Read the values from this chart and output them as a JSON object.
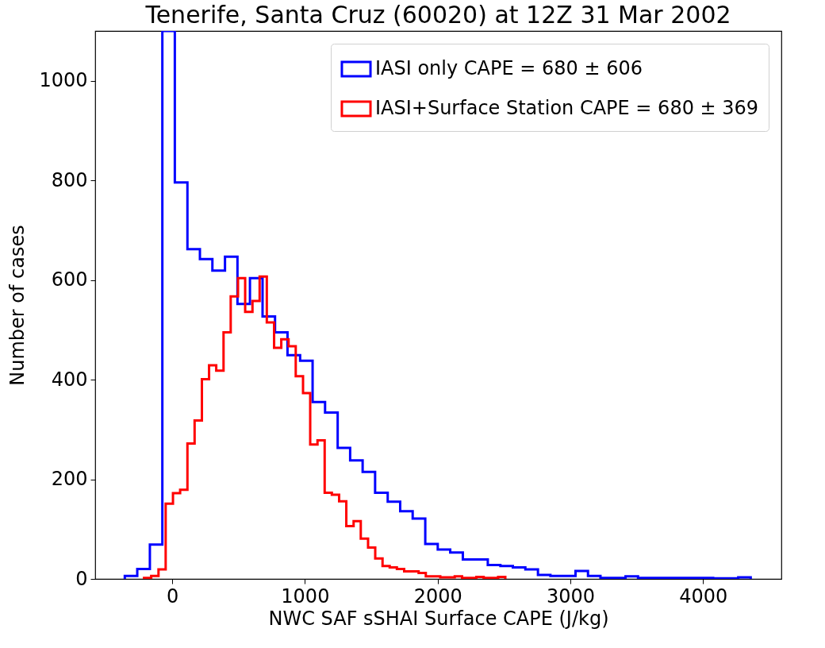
{
  "chart_data": {
    "type": "histogram",
    "title": "Tenerife, Santa Cruz (60020) at 12Z 31 Mar 2002",
    "xlabel": "NWC SAF sSHAI Surface CAPE (J/kg)",
    "ylabel": "Number of cases",
    "xlim": [
      -580,
      4590
    ],
    "ylim": [
      0,
      1100
    ],
    "xticks": [
      0,
      1000,
      2000,
      3000,
      4000
    ],
    "yticks": [
      0,
      200,
      400,
      600,
      800,
      1000
    ],
    "legend": "top right",
    "bins": [
      -357,
      -263,
      -168,
      -74,
      20,
      115,
      209,
      303,
      398,
      492,
      586,
      681,
      775,
      869,
      964,
      1058,
      1152,
      1247,
      1341,
      1435,
      1529,
      1624,
      1718,
      1812,
      1907,
      2001,
      2095,
      2190,
      2284,
      2378,
      2473,
      2567,
      2661,
      2756,
      2850,
      2944,
      3039,
      3133,
      3227,
      3322,
      3416,
      3510,
      3604,
      3699,
      3793,
      3887,
      3982,
      4076,
      4170,
      4265,
      4359
    ],
    "series": [
      {
        "name": "IASI only CAPE = 680 ± 606",
        "color": "#0000ff",
        "values": [
          6,
          20,
          69,
          1100,
          796,
          662,
          642,
          619,
          647,
          552,
          604,
          527,
          495,
          449,
          438,
          355,
          334,
          263,
          238,
          215,
          173,
          155,
          136,
          121,
          70,
          59,
          53,
          39,
          39,
          28,
          26,
          23,
          19,
          8,
          6,
          6,
          16,
          6,
          2,
          2,
          5,
          2,
          2,
          2,
          2,
          2,
          2,
          1,
          1,
          3
        ]
      },
      {
        "name": "IASI+Surface Station CAPE = 680 ± 369",
        "color": "#ff0000",
        "bins": [
          -212,
          -158,
          -103,
          -49,
          6,
          60,
          115,
          169,
          224,
          278,
          332,
          387,
          441,
          496,
          550,
          605,
          659,
          713,
          768,
          822,
          877,
          931,
          986,
          1040,
          1095,
          1149,
          1203,
          1258,
          1312,
          1367,
          1421,
          1476,
          1530,
          1585,
          1639,
          1693,
          1748,
          1802,
          1857,
          1911,
          1966,
          2020,
          2075,
          2129,
          2184,
          2238,
          2292,
          2347,
          2401,
          2456,
          2510
        ],
        "values": [
          2,
          6,
          19,
          151,
          172,
          179,
          272,
          318,
          401,
          429,
          418,
          495,
          567,
          604,
          536,
          558,
          607,
          515,
          464,
          481,
          467,
          407,
          373,
          270,
          278,
          173,
          169,
          156,
          106,
          116,
          81,
          63,
          41,
          26,
          23,
          20,
          15,
          15,
          12,
          5,
          5,
          3,
          3,
          5,
          2,
          2,
          4,
          2,
          2,
          4
        ]
      }
    ]
  }
}
